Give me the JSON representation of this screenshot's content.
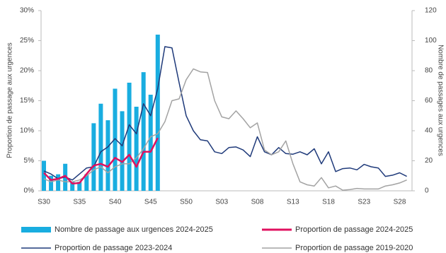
{
  "chart_data": {
    "type": "combo",
    "y_label": "Proportion de passage aux urgences",
    "y2_label": "Nombre de passages aux urgences",
    "categories": [
      "S30",
      null,
      null,
      null,
      null,
      "S35",
      null,
      null,
      null,
      null,
      "S40",
      null,
      null,
      null,
      null,
      "S45",
      null,
      null,
      null,
      null,
      "S50",
      null,
      null,
      null,
      null,
      "S03",
      null,
      null,
      null,
      null,
      "S08",
      null,
      null,
      null,
      null,
      "S13",
      null,
      null,
      null,
      null,
      "S18",
      null,
      null,
      null,
      null,
      "S23",
      null,
      null,
      null,
      null,
      "S28",
      null
    ],
    "ylim": [
      0,
      30
    ],
    "yticks": [
      {
        "value": 0,
        "label": "0%"
      },
      {
        "value": 5,
        "label": "5%"
      },
      {
        "value": 10,
        "label": "10%"
      },
      {
        "value": 15,
        "label": "15%"
      },
      {
        "value": 20,
        "label": "20%"
      },
      {
        "value": 25,
        "label": "25%"
      },
      {
        "value": 30,
        "label": "30%"
      }
    ],
    "y2lim": [
      0,
      120
    ],
    "y2ticks": [
      0,
      20,
      40,
      60,
      80,
      100,
      120
    ],
    "series": [
      {
        "name": "Nombre de passage aux urgences 2024-2025",
        "type": "bar",
        "axis": "y2",
        "color": "#19ade0",
        "values": [
          20,
          10,
          11,
          18,
          6,
          6,
          11,
          45,
          58,
          47,
          68,
          53,
          72,
          56,
          79,
          64,
          104,
          null,
          null,
          null,
          null,
          null,
          null,
          null,
          null,
          null,
          null,
          null,
          null,
          null,
          null,
          null,
          null,
          null,
          null,
          null,
          null,
          null,
          null,
          null,
          null,
          null,
          null,
          null,
          null,
          null,
          null,
          null,
          null,
          null,
          null,
          null
        ]
      },
      {
        "name": "Proportion de passage 2024-2025",
        "type": "line",
        "color": "#e0105f",
        "values": [
          3.0,
          1.8,
          2.0,
          2.5,
          1.2,
          1.3,
          2.8,
          4.2,
          4.5,
          4.0,
          5.5,
          4.8,
          6.0,
          4.0,
          6.5,
          6.5,
          8.8,
          null,
          null,
          null,
          null,
          null,
          null,
          null,
          null,
          null,
          null,
          null,
          null,
          null,
          null,
          null,
          null,
          null,
          null,
          null,
          null,
          null,
          null,
          null,
          null,
          null,
          null,
          null,
          null,
          null,
          null,
          null,
          null,
          null,
          null,
          null
        ]
      },
      {
        "name": "Proportion de passage 2023-2024",
        "type": "line",
        "color": "#1f3a7a",
        "values": [
          3.3,
          2.8,
          2.0,
          2.3,
          1.8,
          2.8,
          3.8,
          4.0,
          6.5,
          7.3,
          8.7,
          7.5,
          11.0,
          9.5,
          14.5,
          12.5,
          17.0,
          24.0,
          23.8,
          18.0,
          12.5,
          10.0,
          8.5,
          8.3,
          6.5,
          6.2,
          7.2,
          7.3,
          6.8,
          5.7,
          9.0,
          6.5,
          6.0,
          7.2,
          6.2,
          6.1,
          6.5,
          6.0,
          7.0,
          4.5,
          6.5,
          3.2,
          3.7,
          3.8,
          3.5,
          4.4,
          4.0,
          3.8,
          2.4,
          2.6,
          3.0,
          2.4
        ]
      },
      {
        "name": "Proportion de passage 2019-2020",
        "type": "line",
        "color": "#a3a3a3",
        "values": [
          2.0,
          1.5,
          1.8,
          1.5,
          1.5,
          1.8,
          2.5,
          3.5,
          4.0,
          3.0,
          4.0,
          4.5,
          4.5,
          5.5,
          7.0,
          9.0,
          9.5,
          11.5,
          15.0,
          15.3,
          18.5,
          20.3,
          19.8,
          19.7,
          15.0,
          12.3,
          12.0,
          13.3,
          12.0,
          10.5,
          11.3,
          6.8,
          6.0,
          6.5,
          8.3,
          4.5,
          1.5,
          1.0,
          0.8,
          2.2,
          0.5,
          0.8,
          0.1,
          0.2,
          0.4,
          0.3,
          0.3,
          0.3,
          0.8,
          1.0,
          1.3,
          1.8
        ]
      }
    ]
  }
}
